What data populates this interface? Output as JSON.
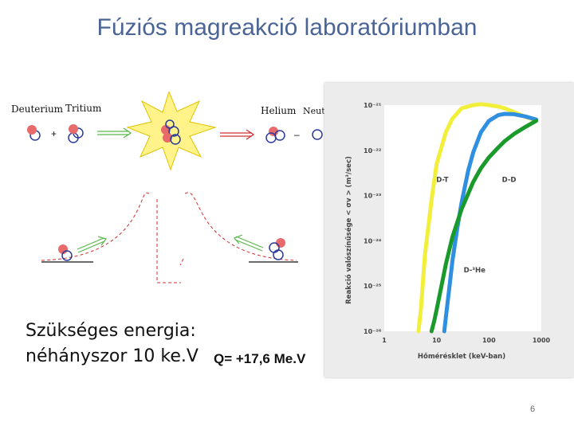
{
  "title": "Fúziós magreakció laboratóriumban",
  "diagram": {
    "deuterium": "Deuterium",
    "tritium": "Tritium",
    "helium": "Helium",
    "neutron": "Neutron",
    "plus": "+",
    "minus": "–"
  },
  "energy_text": {
    "line1": "Szükséges energia:",
    "line2": "néhányszor 10 ke.V"
  },
  "q_value": "Q= +17,6 Me.V",
  "page_number": "6",
  "colors": {
    "dt": "#f2ef3a",
    "dd": "#2f8fe0",
    "dhe3": "#1a9a2a",
    "title": "#4a6496"
  },
  "chart_data": {
    "type": "line",
    "xlabel": "Hőmérésklet (keV-ban)",
    "ylabel": "Reakció valószínűsége < σv > (m³/sec)",
    "x_scale": "log",
    "y_scale": "log",
    "xlim": [
      1,
      1000
    ],
    "ylim": [
      1e-26,
      1e-21
    ],
    "x_ticks": [
      "1",
      "10",
      "100",
      "1000"
    ],
    "y_ticks": [
      "10⁻²¹",
      "10⁻²²",
      "10⁻²³",
      "10⁻²⁴",
      "10⁻²⁵",
      "10⁻²⁶"
    ],
    "series": [
      {
        "name": "D-T",
        "color": "#f2ef3a",
        "x": [
          4.5,
          5,
          6,
          8,
          10,
          15,
          20,
          30,
          50,
          70,
          100,
          150,
          200,
          300,
          500,
          800
        ],
        "y": [
          1e-26,
          3e-26,
          5e-25,
          8e-24,
          5e-23,
          2.5e-22,
          5e-22,
          8.5e-22,
          1e-21,
          1.05e-21,
          1e-21,
          9.3e-22,
          8.5e-22,
          7e-22,
          5.5e-22,
          4.6e-22
        ]
      },
      {
        "name": "D-D",
        "color": "#2f8fe0",
        "x": [
          14,
          15,
          18,
          20,
          25,
          30,
          40,
          50,
          70,
          100,
          150,
          200,
          300,
          500,
          800
        ],
        "y": [
          1e-26,
          2e-26,
          1.2e-25,
          3.5e-25,
          2e-24,
          7e-24,
          3.5e-23,
          9e-23,
          2.5e-22,
          4.5e-22,
          6e-22,
          6.4e-22,
          6.3e-22,
          5.6e-22,
          4.8e-22
        ]
      },
      {
        "name": "D-³He",
        "color": "#1a9a2a",
        "x": [
          8,
          9,
          10,
          15,
          20,
          30,
          50,
          70,
          100,
          150,
          200,
          300,
          500,
          800
        ],
        "y": [
          1e-26,
          1.7e-26,
          3e-26,
          3e-25,
          1.2e-24,
          5e-24,
          2e-23,
          4e-23,
          7e-23,
          1.15e-22,
          1.6e-22,
          2.3e-22,
          3.3e-22,
          4.5e-22
        ]
      }
    ],
    "labels": [
      "D-T",
      "D-D",
      "D-³He"
    ]
  }
}
